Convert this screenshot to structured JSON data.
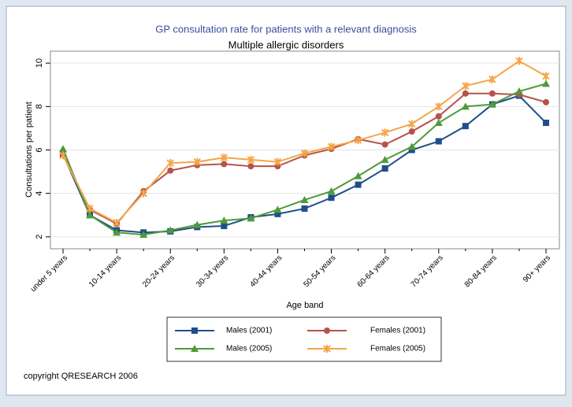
{
  "chart_data": {
    "type": "line",
    "title": "GP consultation rate for patients with a relevant diagnosis",
    "subtitle": "Multiple allergic disorders",
    "xlabel": "Age band",
    "ylabel": "Consultations per patient",
    "copyright": "copyright QRESEARCH 2006",
    "categories": [
      "under 5 years",
      null,
      "10-14 years",
      null,
      "20-24 years",
      null,
      "30-34 years",
      null,
      "40-44 years",
      null,
      "50-54 years",
      null,
      "60-64 years",
      null,
      "70-74 years",
      null,
      "80-84 years",
      null,
      "90+ years"
    ],
    "ylim": [
      1.45,
      10.55
    ],
    "yticks": [
      2,
      4,
      6,
      8,
      10
    ],
    "legend": "bottom",
    "series": [
      {
        "name": "Males (2001)",
        "color": "#1f4f8a",
        "marker": "square",
        "values": [
          5.8,
          3.0,
          2.3,
          2.2,
          2.25,
          2.45,
          2.5,
          2.9,
          3.05,
          3.3,
          3.8,
          4.4,
          5.15,
          6.0,
          6.4,
          7.1,
          8.1,
          8.5,
          7.25
        ]
      },
      {
        "name": "Females (2001)",
        "color": "#b5534a",
        "marker": "circle",
        "values": [
          5.8,
          3.25,
          2.6,
          4.1,
          5.05,
          5.3,
          5.35,
          5.25,
          5.25,
          5.75,
          6.05,
          6.5,
          6.25,
          6.85,
          7.55,
          8.6,
          8.6,
          8.55,
          8.2
        ]
      },
      {
        "name": "Males (2005)",
        "color": "#4f9a3a",
        "marker": "triangle",
        "values": [
          6.05,
          3.0,
          2.2,
          2.1,
          2.3,
          2.55,
          2.75,
          2.85,
          3.25,
          3.7,
          4.1,
          4.8,
          5.55,
          6.15,
          7.25,
          8.0,
          8.1,
          8.7,
          9.05
        ]
      },
      {
        "name": "Females (2005)",
        "color": "#f5a54a",
        "marker": "star",
        "values": [
          5.75,
          3.3,
          2.65,
          4.0,
          5.4,
          5.45,
          5.65,
          5.55,
          5.45,
          5.85,
          6.15,
          6.45,
          6.8,
          7.2,
          8.0,
          8.95,
          9.25,
          10.1,
          9.4
        ]
      }
    ]
  }
}
